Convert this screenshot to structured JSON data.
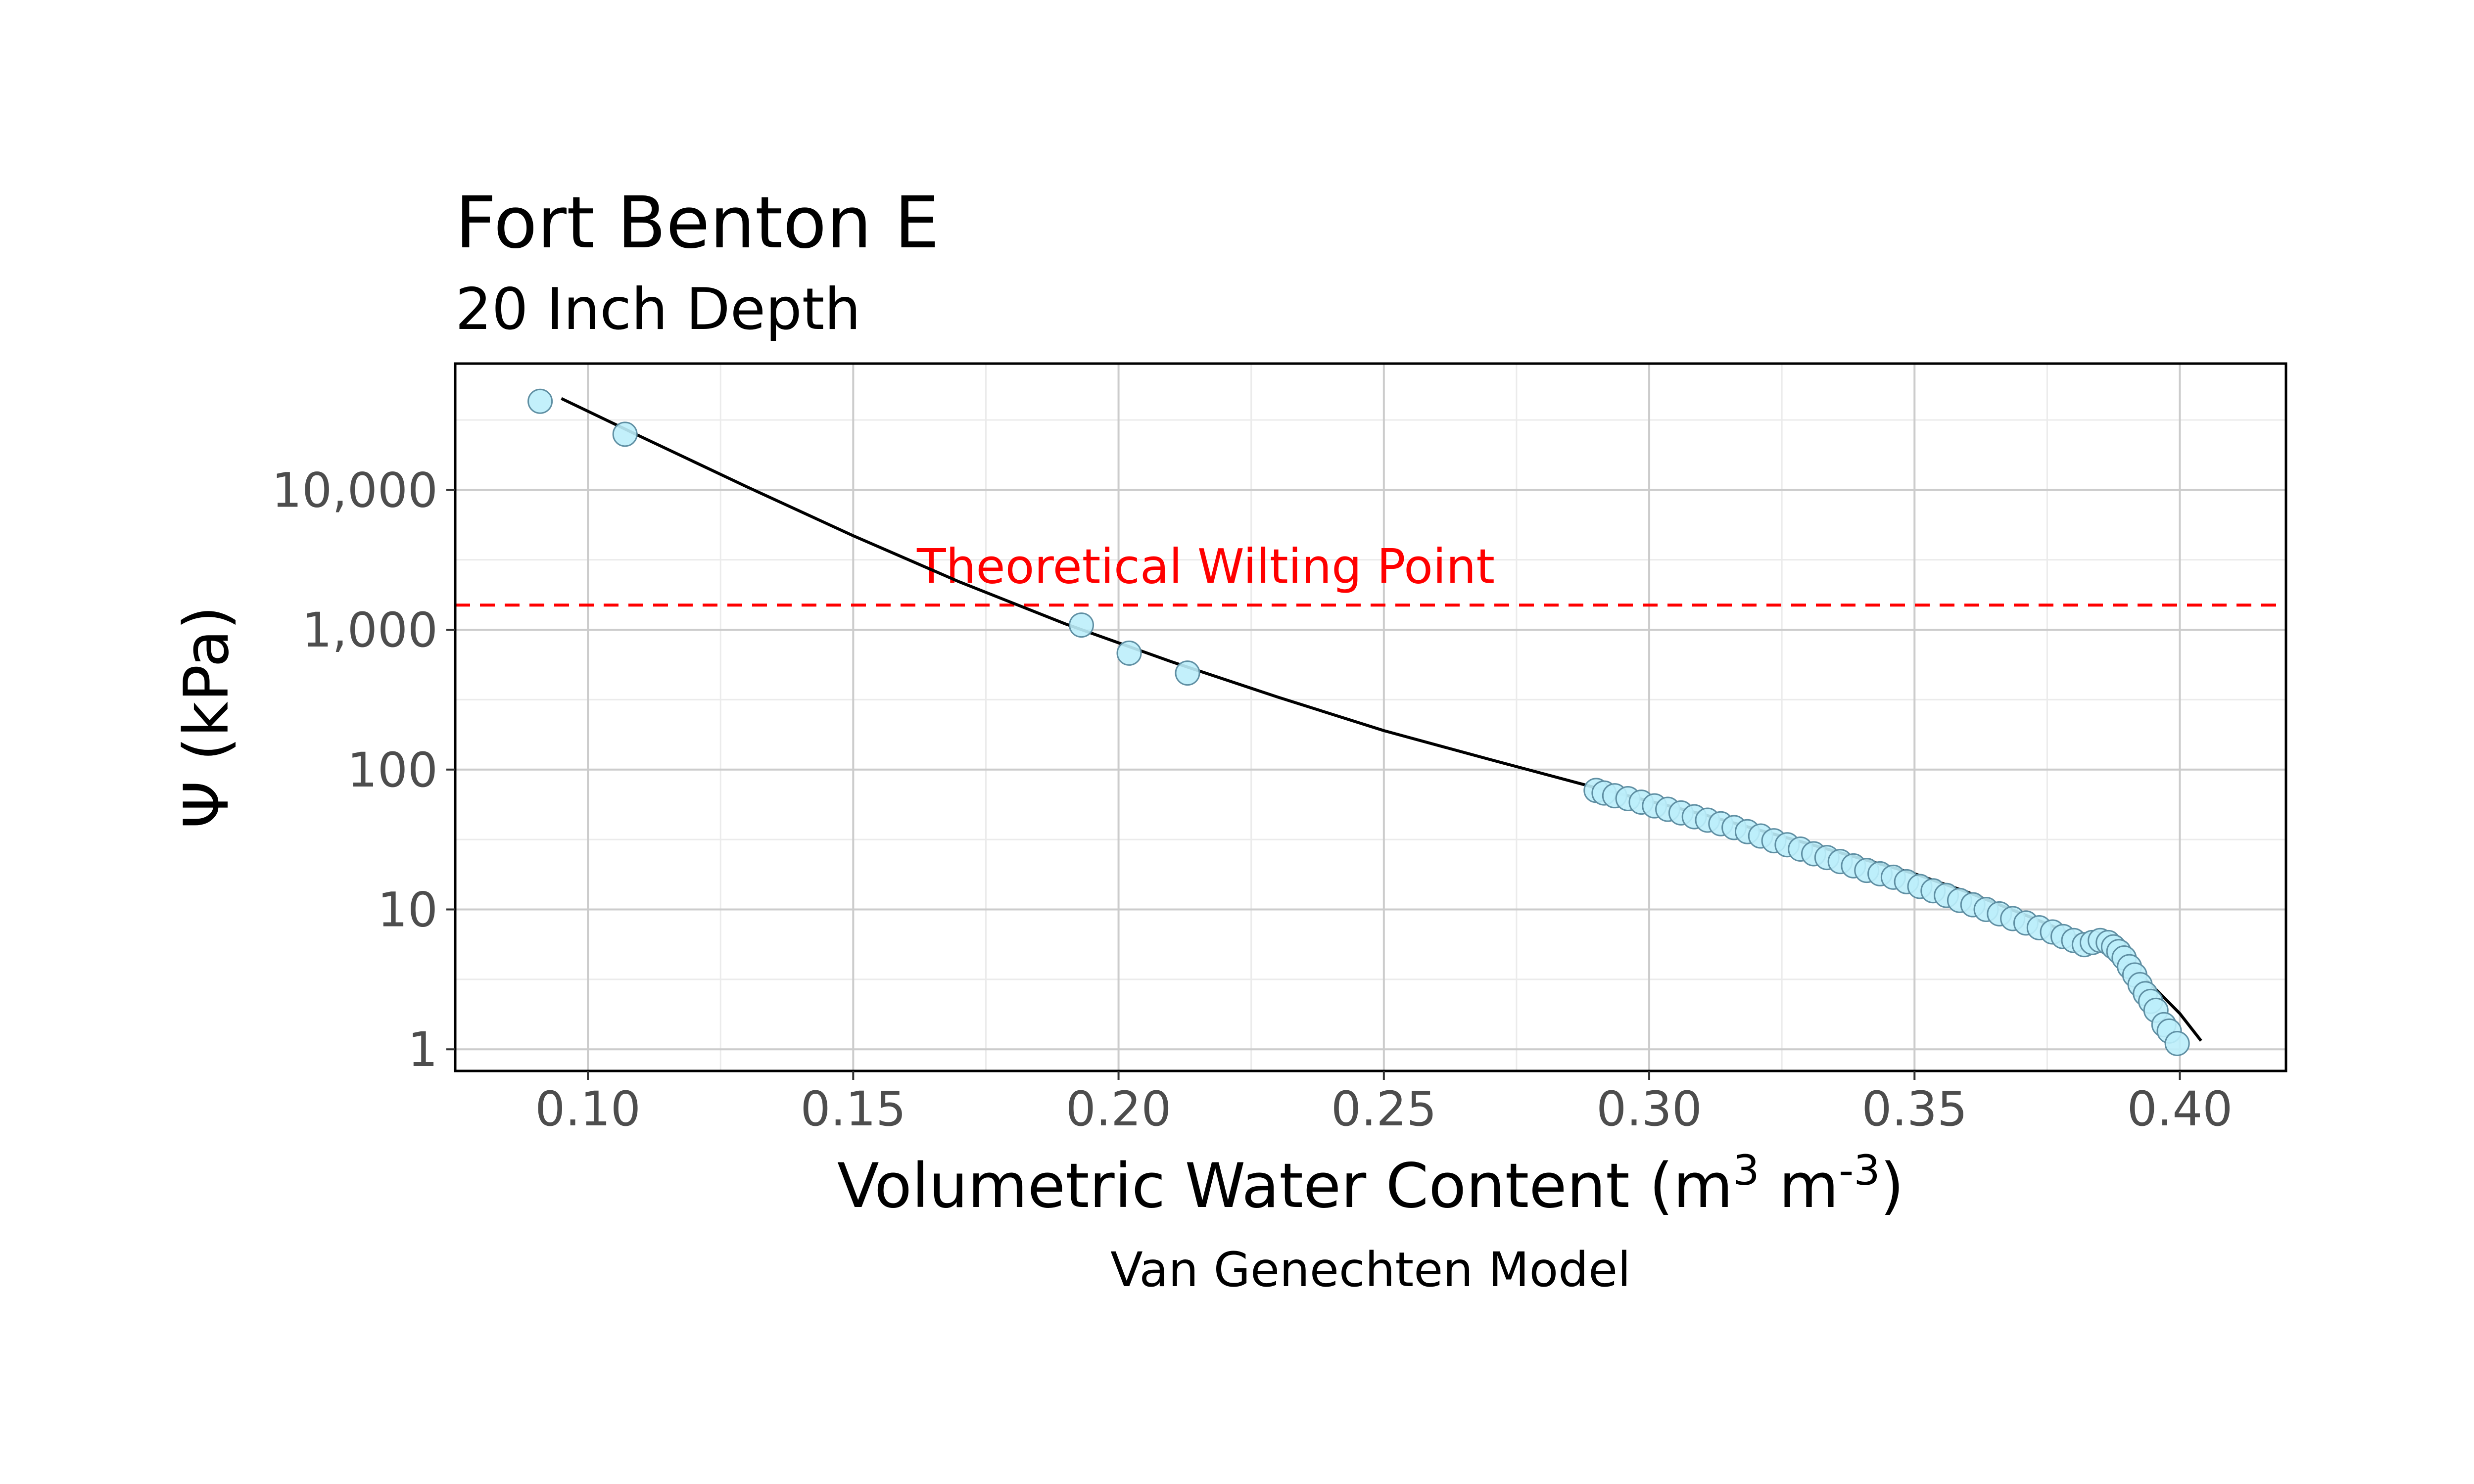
{
  "chart_data": {
    "type": "scatter",
    "title": "Fort Benton E",
    "subtitle": "20 Inch Depth",
    "caption": "Van Genechten Model",
    "xlabel": {
      "base": "Volumetric Water Content (m",
      "sup1": "3",
      "mid": " m",
      "sup2": "-3",
      "end": ")"
    },
    "ylabel": "Ψ (kPa)",
    "y_scale": "log10",
    "xlim": [
      0.075,
      0.42
    ],
    "ylim": [
      0.7,
      80000
    ],
    "x_ticks": [
      {
        "value": 0.1,
        "label": "0.10"
      },
      {
        "value": 0.15,
        "label": "0.15"
      },
      {
        "value": 0.2,
        "label": "0.20"
      },
      {
        "value": 0.25,
        "label": "0.25"
      },
      {
        "value": 0.3,
        "label": "0.30"
      },
      {
        "value": 0.35,
        "label": "0.35"
      },
      {
        "value": 0.4,
        "label": "0.40"
      }
    ],
    "y_ticks": [
      {
        "value": 1,
        "label": "1"
      },
      {
        "value": 10,
        "label": "10"
      },
      {
        "value": 100,
        "label": "100"
      },
      {
        "value": 1000,
        "label": "1,000"
      },
      {
        "value": 10000,
        "label": "10,000"
      }
    ],
    "grid": true,
    "reference_line": {
      "y": 1500,
      "label": "Theoretical Wilting Point",
      "label_x": 0.162,
      "color": "#ff0000"
    },
    "point_color": "#bdeefb",
    "point_stroke": "#5f8fa3",
    "curve_color": "#000000",
    "observed": {
      "x": [
        0.091,
        0.107,
        0.193,
        0.202,
        0.213,
        0.29,
        0.2915,
        0.2935,
        0.296,
        0.2985,
        0.301,
        0.3035,
        0.306,
        0.3085,
        0.311,
        0.3135,
        0.316,
        0.3185,
        0.321,
        0.3235,
        0.326,
        0.3285,
        0.331,
        0.3335,
        0.336,
        0.3385,
        0.341,
        0.3435,
        0.346,
        0.3485,
        0.351,
        0.3535,
        0.356,
        0.3585,
        0.361,
        0.3635,
        0.366,
        0.3685,
        0.371,
        0.3735,
        0.376,
        0.378,
        0.38,
        0.382,
        0.3835,
        0.385,
        0.3865,
        0.3875,
        0.3885,
        0.3895,
        0.3905,
        0.3915,
        0.3925,
        0.3935,
        0.3945,
        0.3955,
        0.397,
        0.398,
        0.3995
      ],
      "y": [
        43000,
        25000,
        1080,
        680,
        490,
        71,
        68,
        65,
        62,
        58.5,
        55,
        52,
        49,
        46,
        43.5,
        41,
        38.5,
        36,
        33.5,
        31,
        29,
        27,
        25,
        23.5,
        22,
        20.5,
        19,
        18,
        17,
        15.8,
        14.6,
        13.6,
        12.6,
        11.6,
        10.8,
        10,
        9.3,
        8.6,
        8,
        7.4,
        6.9,
        6.4,
        6.0,
        5.6,
        5.8,
        6.0,
        5.8,
        5.4,
        5.0,
        4.5,
        3.9,
        3.4,
        2.9,
        2.5,
        2.2,
        1.9,
        1.5,
        1.35,
        1.1
      ]
    },
    "fitted_curve": {
      "x": [
        0.095,
        0.11,
        0.13,
        0.15,
        0.17,
        0.19,
        0.21,
        0.23,
        0.25,
        0.27,
        0.29,
        0.31,
        0.33,
        0.35,
        0.36,
        0.37,
        0.38,
        0.385,
        0.39,
        0.395,
        0.4,
        0.404
      ],
      "y": [
        45000,
        24000,
        10500,
        4700,
        2200,
        1100,
        590,
        330,
        190,
        118,
        74,
        48,
        29.5,
        18,
        13.3,
        9.4,
        6.6,
        5.6,
        4.2,
        2.8,
        1.8,
        1.15
      ]
    }
  }
}
